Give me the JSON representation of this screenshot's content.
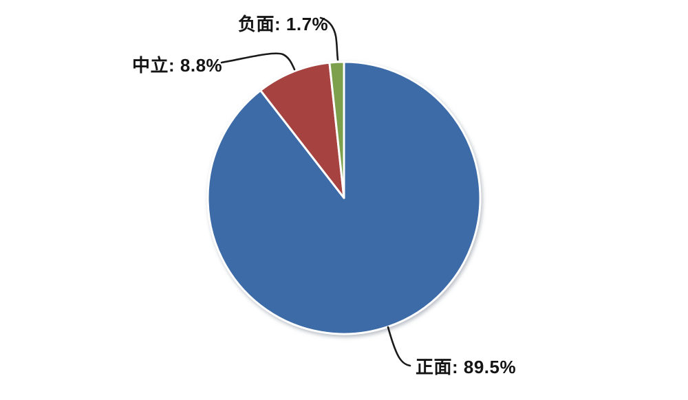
{
  "chart_data": {
    "type": "pie",
    "title": "",
    "categories": [
      "正面",
      "中立",
      "负面"
    ],
    "values": [
      89.5,
      8.8,
      1.7
    ],
    "unit": "%",
    "colors": [
      "#3C6BA8",
      "#A64240",
      "#7CA04C"
    ],
    "slice_ids": [
      "positive",
      "neutral",
      "negative"
    ],
    "start_angle_deg": 0,
    "direction": "clockwise",
    "legend_position": "none",
    "grid": false,
    "labels": [
      {
        "text": "正面: 89.5%"
      },
      {
        "text": "中立: 8.8%"
      },
      {
        "text": "负面: 1.7%"
      }
    ]
  },
  "canvas": {
    "background": "#FFFFFF",
    "label_color": "#141414",
    "leader_line_color": "#1A1A1A"
  }
}
